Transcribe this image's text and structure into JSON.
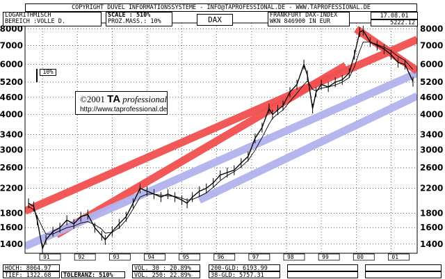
{
  "header": {
    "copyright": "COPYRIGHT  DUVEL INFORMATIONSSYSTEME - INFO@TAPROFESSIONAL.DE - WWW.TAPROFESSIONAL.DE",
    "scale_type": "LOGARITHMISCH",
    "range": "BEREICH :VOLLE D.",
    "scale_label": "SCALE : 510%",
    "prozmass": "PROZ.MASS.: 10%",
    "symbol": "DAX",
    "exchange": "FRANKFURT DAX-INDEX",
    "wkn": "WKN 846900   IN EUR",
    "date": "17.08.01",
    "last_price": "5222.12"
  },
  "logo": {
    "line1_prefix": "©2001 ",
    "line1_brand": "TA",
    "line1_suffix": " professional",
    "line2": "http://www.taprofessional.de"
  },
  "scale_marker": "10%",
  "stats": {
    "hoch": "HOCH: 8064.97",
    "tief": "TIEF: 1322.68",
    "toleranz": "TOLERANZ: 510%",
    "vol30": "VOL. 30 : 20.89%",
    "vol250": "VOL. 250: 22.89%",
    "gld200": "200-GLD: 6193.99",
    "gld38": "38-GLD: 5757.31"
  },
  "chart_data": {
    "type": "line",
    "title": "DAX",
    "y_scale": "log",
    "ylim": [
      1300,
      8400
    ],
    "y_ticks": [
      1400,
      1600,
      1800,
      2200,
      2600,
      3000,
      3400,
      4000,
      4600,
      5200,
      6000,
      7000,
      8000
    ],
    "xlim": [
      1990.5,
      2001.75
    ],
    "x_ticks": [
      "91",
      "92",
      "93",
      "94",
      "95",
      "96",
      "97",
      "98",
      "99",
      "00",
      "01"
    ],
    "x": [
      1990.6,
      1990.75,
      1990.85,
      1991.0,
      1991.1,
      1991.3,
      1991.5,
      1991.7,
      1991.9,
      1992.1,
      1992.3,
      1992.5,
      1992.7,
      1992.8,
      1993.0,
      1993.2,
      1993.4,
      1993.6,
      1993.8,
      1994.0,
      1994.2,
      1994.4,
      1994.6,
      1994.8,
      1995.0,
      1995.15,
      1995.3,
      1995.5,
      1995.7,
      1995.9,
      1996.1,
      1996.3,
      1996.5,
      1996.7,
      1996.9,
      1997.1,
      1997.3,
      1997.5,
      1997.6,
      1997.75,
      1997.9,
      1998.1,
      1998.3,
      1998.5,
      1998.6,
      1998.75,
      1998.85,
      1999.0,
      1999.2,
      1999.4,
      1999.6,
      1999.8,
      1999.95,
      2000.1,
      2000.2,
      2000.4,
      2000.6,
      2000.8,
      2001.0,
      2001.2,
      2001.4,
      2001.63
    ],
    "series": [
      {
        "values": [
          1950,
          1900,
          1700,
          1350,
          1450,
          1550,
          1600,
          1700,
          1650,
          1750,
          1780,
          1600,
          1500,
          1450,
          1550,
          1650,
          1750,
          1950,
          2200,
          2150,
          2100,
          2050,
          2100,
          2050,
          2000,
          1950,
          2050,
          2150,
          2200,
          2300,
          2450,
          2500,
          2550,
          2700,
          2850,
          3300,
          3600,
          4200,
          4000,
          4150,
          4300,
          4800,
          5100,
          6000,
          5500,
          4200,
          4800,
          5100,
          5000,
          5200,
          5300,
          5600,
          6500,
          7800,
          7900,
          7200,
          7000,
          6800,
          6500,
          6100,
          6000,
          5222
        ]
      },
      {
        "values": [
          1900,
          1850,
          1750,
          1600,
          1520,
          1520,
          1560,
          1600,
          1620,
          1660,
          1680,
          1640,
          1580,
          1530,
          1540,
          1600,
          1700,
          1860,
          2050,
          2100,
          2100,
          2080,
          2070,
          2060,
          2030,
          2000,
          2010,
          2060,
          2120,
          2220,
          2340,
          2440,
          2520,
          2620,
          2760,
          3000,
          3320,
          3700,
          3880,
          4020,
          4150,
          4450,
          4750,
          5100,
          5250,
          4900,
          4850,
          4950,
          5000,
          5080,
          5200,
          5400,
          5900,
          6700,
          7200,
          7200,
          7050,
          6900,
          6700,
          6400,
          6200,
          5757
        ]
      }
    ],
    "channels": [
      {
        "color": "#f25050",
        "x": [
          1990.5,
          2001.75
        ],
        "y": [
          1830,
          7350
        ]
      },
      {
        "color": "#f25050",
        "x": [
          1991.4,
          1999.7
        ],
        "y": [
          1510,
          5950
        ]
      },
      {
        "color": "#b3b3ee",
        "x": [
          1990.5,
          2001.75
        ],
        "y": [
          1375,
          5600
        ]
      },
      {
        "color": "#b3b3ee",
        "x": [
          1995.5,
          2001.75
        ],
        "y": [
          2000,
          4650
        ]
      },
      {
        "color": "#f25050",
        "x": [
          2000.0,
          2001.75
        ],
        "y": [
          8000,
          5700
        ]
      }
    ]
  }
}
